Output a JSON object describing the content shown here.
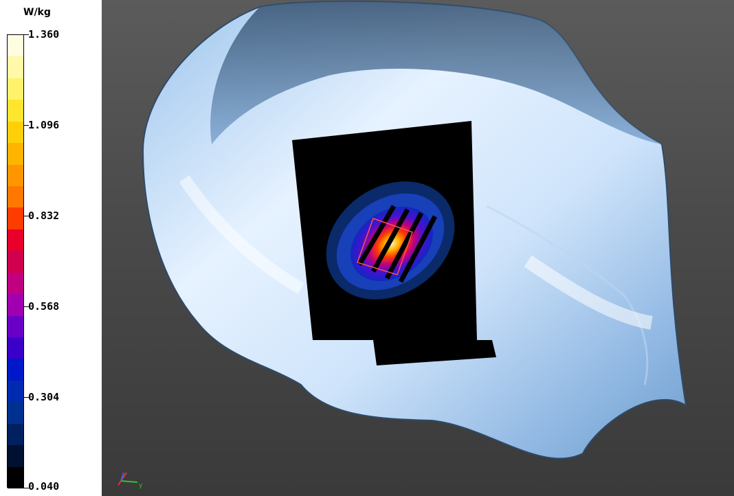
{
  "legend": {
    "unit": "W/kg",
    "ticks": [
      "1.360",
      "1.096",
      "0.832",
      "0.568",
      "0.304",
      "0.040"
    ],
    "colors": [
      "#fffde0",
      "#fff9a8",
      "#fff36a",
      "#ffe62e",
      "#ffd00a",
      "#ffb400",
      "#ff9600",
      "#ff7800",
      "#ff3c00",
      "#e8002a",
      "#d0004e",
      "#c00080",
      "#a000b0",
      "#6a00c8",
      "#3a00c8",
      "#0018c8",
      "#002ab0",
      "#003090",
      "#002060",
      "#001030",
      "#000000"
    ]
  },
  "viewport": {
    "axis_x_label": "y",
    "view": "3D SAR distribution"
  }
}
